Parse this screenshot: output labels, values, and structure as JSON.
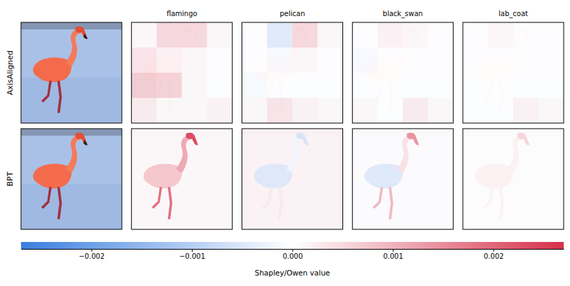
{
  "chart_data": {
    "type": "heatmap",
    "columns": [
      "flamingo",
      "pelican",
      "black_swan",
      "lab_coat"
    ],
    "rows": [
      {
        "label": "AxisAligned",
        "values": [
          [
            [
              0.0001,
              0.0006,
              0.0006,
              0.0001
            ],
            [
              0.0004,
              0.0002,
              0.0001,
              0.0
            ],
            [
              0.0008,
              0.0007,
              0.0001,
              0.0
            ],
            [
              0.0003,
              0.0001,
              0.0001,
              0.0002
            ]
          ],
          [
            [
              0.0,
              -0.0005,
              0.0006,
              0.0001
            ],
            [
              0.0,
              -0.0001,
              0.0001,
              0.0
            ],
            [
              -0.0001,
              0.0,
              0.0,
              0.0
            ],
            [
              0.0001,
              0.0004,
              0.0002,
              0.0001
            ]
          ],
          [
            [
              0.0,
              0.0002,
              0.0001,
              0.0
            ],
            [
              -0.0001,
              0.0,
              0.0,
              0.0
            ],
            [
              0.0,
              0.0,
              0.0,
              0.0
            ],
            [
              0.0001,
              0.0,
              0.0003,
              0.0001
            ]
          ],
          [
            [
              0.0,
              0.0001,
              0.0,
              0.0
            ],
            [
              0.0,
              0.0,
              0.0,
              0.0
            ],
            [
              0.0,
              0.0,
              0.0,
              0.0
            ],
            [
              0.0,
              0.0,
              0.0002,
              0.0001
            ]
          ]
        ]
      },
      {
        "label": "BPT",
        "values": [
          [
            0.0001,
            0.0008,
            0.0012,
            0.0025,
            0.002
          ],
          [
            0.0002,
            -0.0005,
            -0.0002,
            -0.0006,
            0.0003
          ],
          [
            5e-05,
            -0.0005,
            0.0004,
            0.0015,
            0.001
          ],
          [
            3e-05,
            0.0002,
            0.0002,
            0.0006,
            0.0002
          ]
        ]
      }
    ],
    "colorbar": {
      "label": "Shapley/Owen value",
      "range": [
        -0.0027,
        0.0027
      ],
      "ticks": [
        {
          "value": -0.002,
          "label": "−0.002"
        },
        {
          "value": -0.001,
          "label": "−0.001"
        },
        {
          "value": 0,
          "label": "0.000"
        },
        {
          "value": 0.001,
          "label": "0.001"
        },
        {
          "value": 0.002,
          "label": "0.002"
        }
      ]
    }
  }
}
